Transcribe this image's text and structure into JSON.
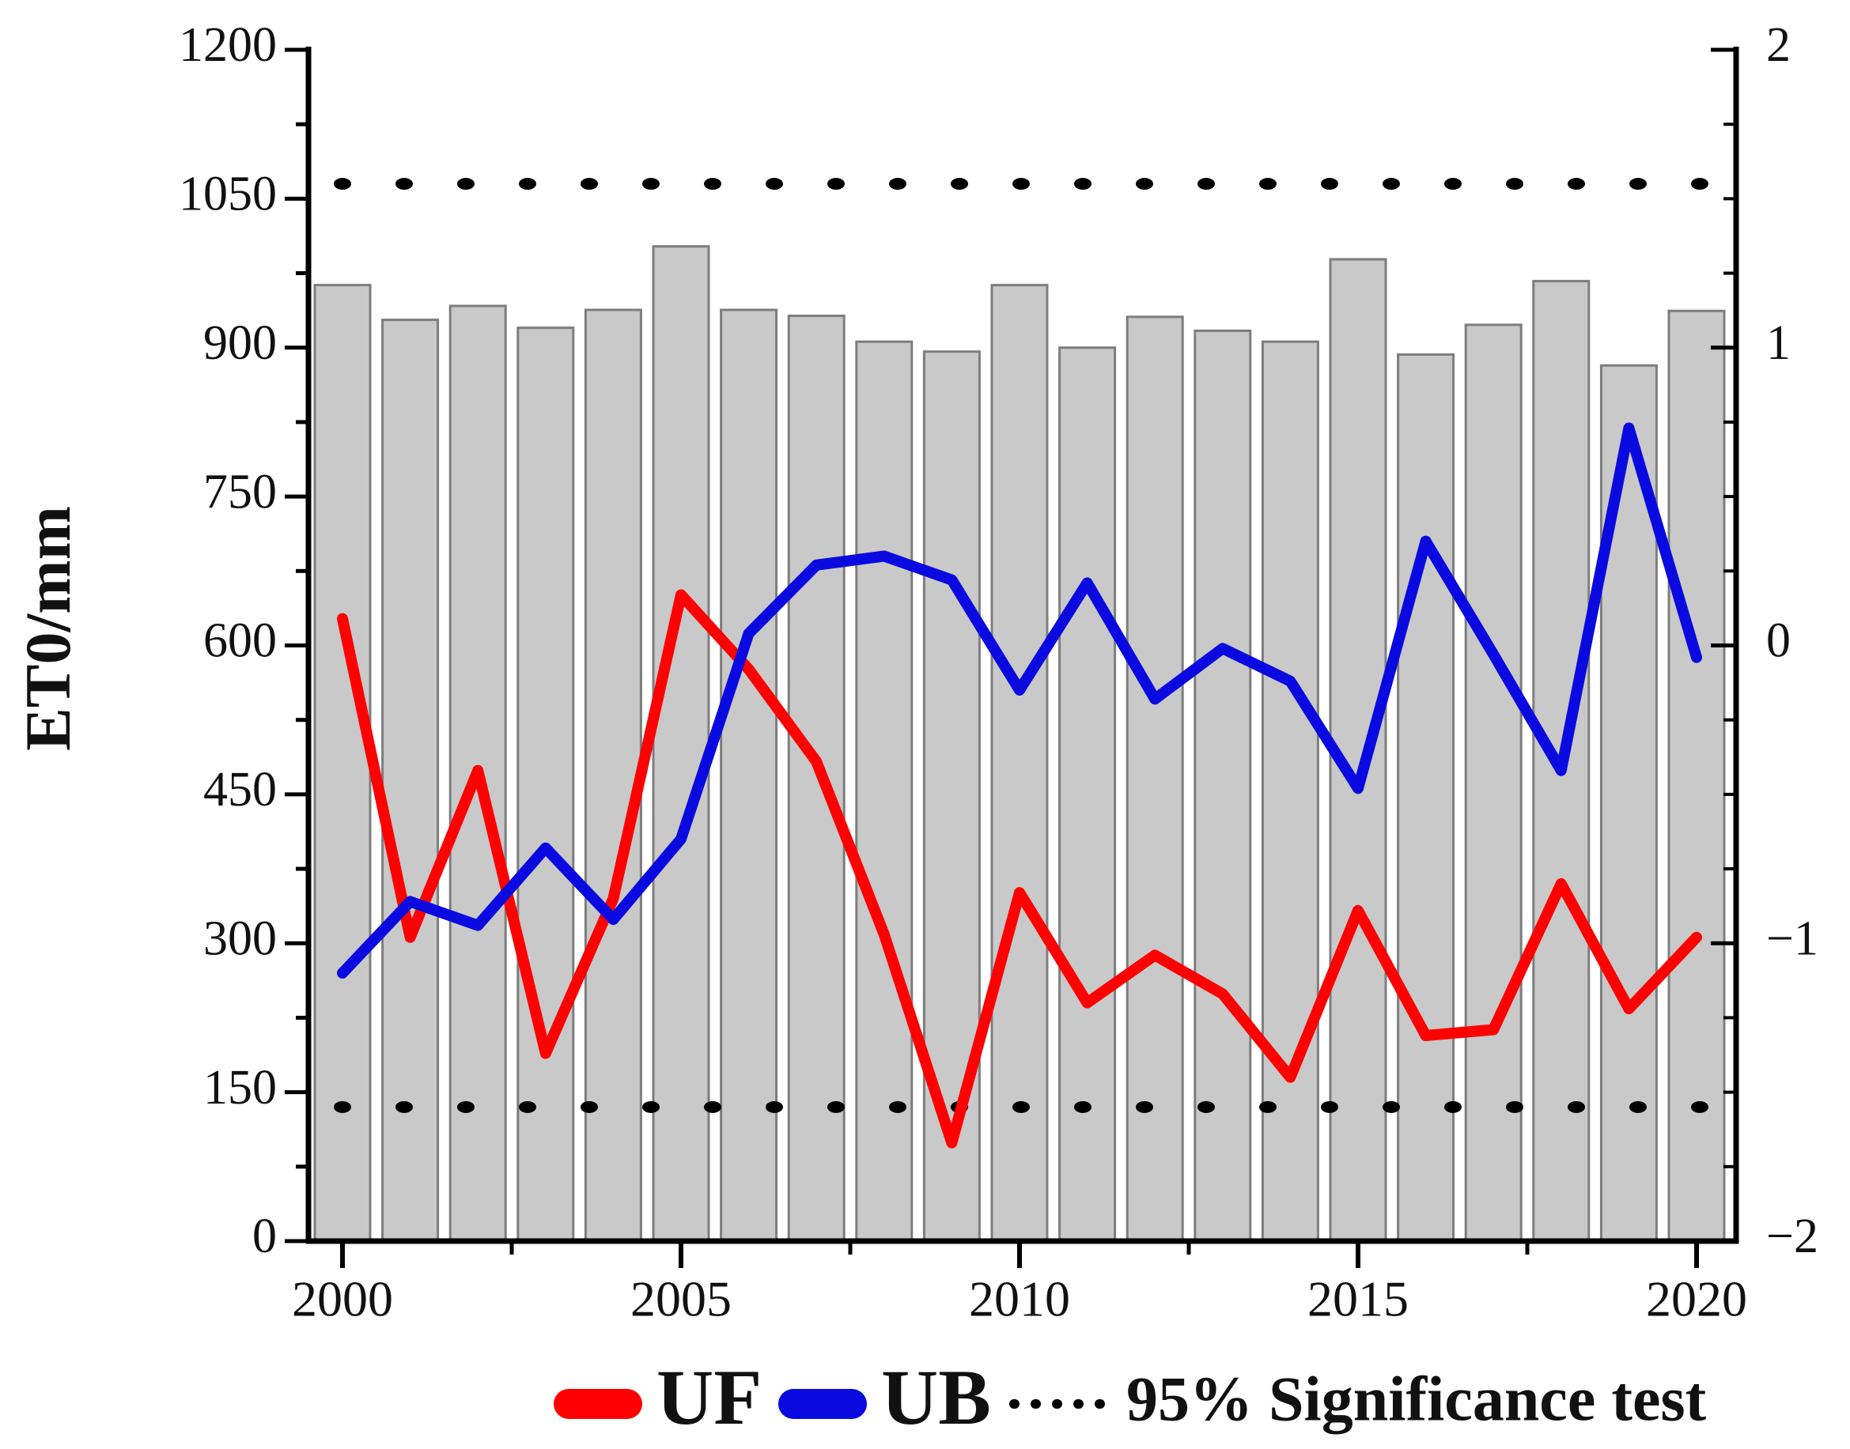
{
  "colors": {
    "uf": "#ff0000",
    "ub": "#0a0ae0",
    "bar_fill": "#c9c9c9",
    "bar_stroke": "#7d7d7d",
    "axis": "#000000",
    "significance": "#000000",
    "background": "#ffffff"
  },
  "chart_data": {
    "type": "bar+line",
    "title": "",
    "years": [
      2000,
      2001,
      2002,
      2003,
      2004,
      2005,
      2006,
      2007,
      2008,
      2009,
      2010,
      2011,
      2012,
      2013,
      2014,
      2015,
      2016,
      2017,
      2018,
      2019,
      2020
    ],
    "bars": {
      "name": "ET0",
      "unit": "mm",
      "axis": "left",
      "values": [
        963,
        928,
        942,
        920,
        938,
        1002,
        938,
        932,
        906,
        896,
        963,
        900,
        931,
        917,
        906,
        989,
        893,
        923,
        967,
        882,
        937
      ]
    },
    "series": [
      {
        "name": "UF",
        "axis": "right",
        "color_key": "uf",
        "values": [
          0.09,
          -0.98,
          -0.42,
          -1.37,
          -0.85,
          0.17,
          -0.08,
          -0.39,
          -0.97,
          -1.67,
          -0.83,
          -1.2,
          -1.04,
          -1.17,
          -1.45,
          -0.89,
          -1.31,
          -1.29,
          -0.8,
          -1.22,
          -0.98
        ]
      },
      {
        "name": "UB",
        "axis": "right",
        "color_key": "ub",
        "values": [
          -1.1,
          -0.86,
          -0.94,
          -0.68,
          -0.92,
          -0.65,
          0.04,
          0.27,
          0.3,
          0.22,
          -0.15,
          0.21,
          -0.18,
          -0.01,
          -0.12,
          -0.48,
          0.35,
          -0.03,
          -0.42,
          0.73,
          -0.04
        ]
      }
    ],
    "significance_lines": {
      "label": "95% Significance test",
      "style": "dotted",
      "axis": "right",
      "values": [
        1.55,
        -1.55
      ]
    },
    "axes": {
      "left": {
        "label": "ET0/mm",
        "min": 0,
        "max": 1200,
        "major_ticks": [
          0,
          150,
          300,
          450,
          600,
          750,
          900,
          1050,
          1200
        ],
        "tick_labels": [
          "0",
          "150",
          "300",
          "450",
          "600",
          "750",
          "900",
          "1050",
          "1200"
        ],
        "minor_step": 75
      },
      "right": {
        "label": "",
        "min": -2,
        "max": 2,
        "major_ticks": [
          2,
          1,
          0,
          -1,
          -2
        ],
        "tick_labels": [
          "2",
          "1",
          "0",
          "−1",
          "−2"
        ],
        "minor_step": 0.25
      },
      "x": {
        "min": 1999.5,
        "max": 2020.6,
        "major_ticks": [
          2000,
          2005,
          2010,
          2015,
          2020
        ],
        "tick_labels": [
          "2000",
          "2005",
          "2010",
          "2015",
          "2020"
        ],
        "minor_ticks": [
          2002.5,
          2007.5,
          2012.5,
          2017.5
        ]
      }
    },
    "legend": [
      {
        "label": "UF",
        "type": "line",
        "color_key": "uf"
      },
      {
        "label": "UB",
        "type": "line",
        "color_key": "ub"
      },
      {
        "label": "95% Significance test",
        "type": "dotted",
        "color_key": "significance"
      }
    ]
  }
}
